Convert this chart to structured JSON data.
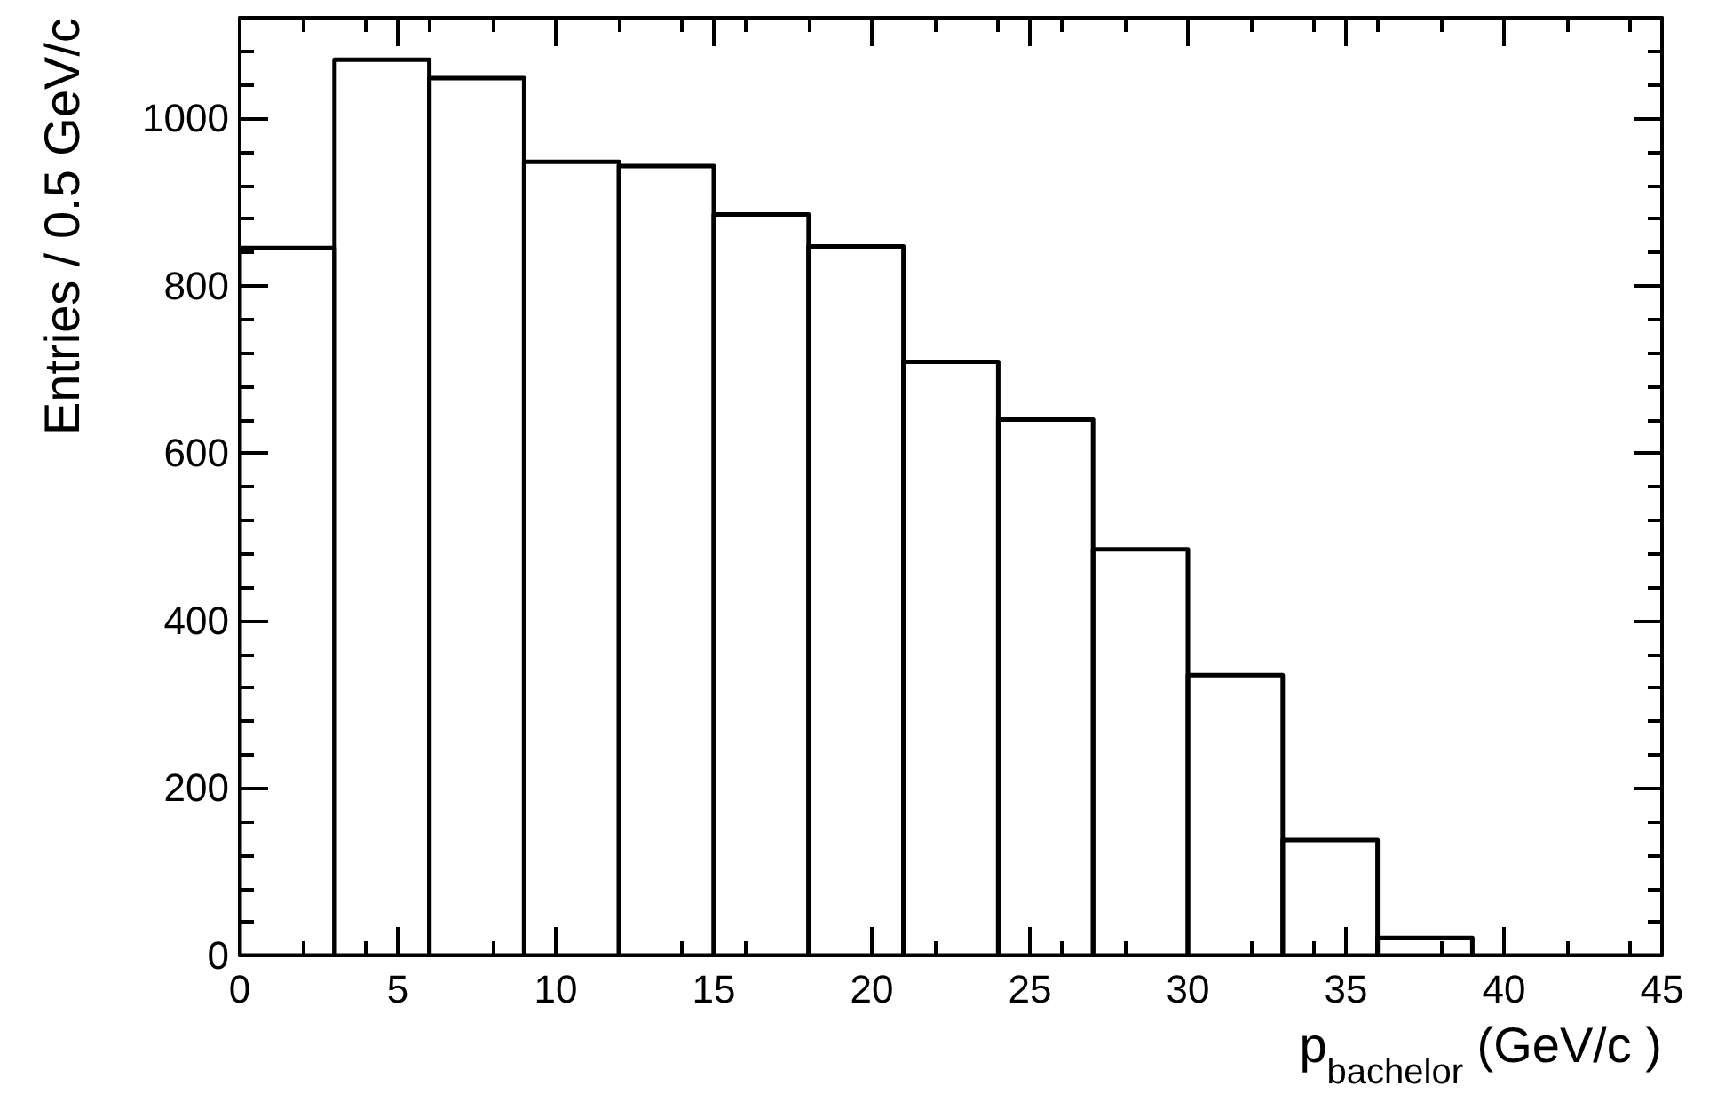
{
  "chart_data": {
    "type": "histogram",
    "xlabel": "p$_{bachelor}$ (GeV/c )",
    "ylabel": "Entries / 0.5 GeV/c",
    "bins": [
      0,
      3,
      6,
      9,
      12,
      15,
      18,
      21,
      24,
      27,
      30,
      33,
      36,
      39,
      42,
      45
    ],
    "values": [
      845,
      1070,
      1048,
      948,
      943,
      885,
      847,
      709,
      640,
      485,
      335,
      138,
      21,
      0,
      0
    ],
    "color": "#000000",
    "xlim": [
      0,
      45
    ],
    "xticks": [
      0,
      5,
      10,
      15,
      20,
      25,
      30,
      35,
      40,
      45
    ],
    "ylim": [
      0,
      1120
    ],
    "yticks": [
      0,
      200,
      400,
      600,
      800,
      1000
    ],
    "grid": false
  }
}
